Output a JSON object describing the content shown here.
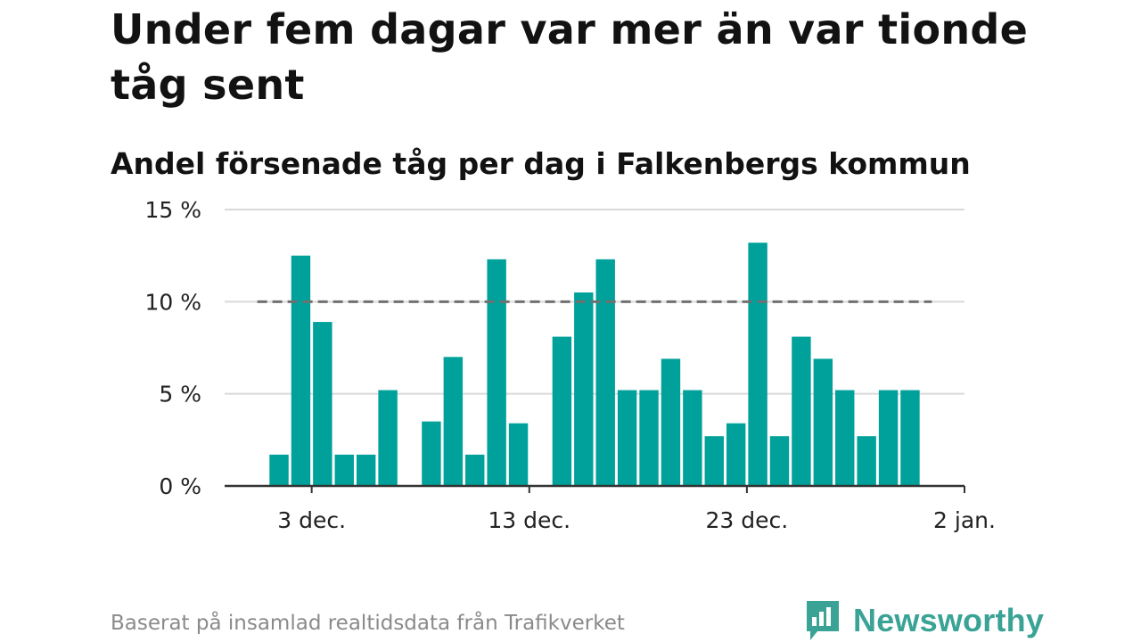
{
  "title": "Under fem dagar var mer än var tionde tåg sent",
  "subtitle": "Andel försenade tåg per dag i Falkenbergs kommun",
  "source": "Baserat på insamlad realtidsdata från Trafikverket",
  "brand": {
    "name": "Newsworthy",
    "color": "#3aa396",
    "icon": "newsworthy-chart-bubble-icon"
  },
  "colors": {
    "bar": "#00a19a",
    "grid": "#d9d9d9",
    "reference_line": "#707070",
    "axis": "#333333"
  },
  "chart_data": {
    "type": "bar",
    "title": "Under fem dagar var mer än var tionde tåg sent",
    "subtitle": "Andel försenade tåg per dag i Falkenbergs kommun",
    "xlabel": "",
    "ylabel": "",
    "x_start": "29 nov.",
    "x_tick_labels": [
      "3 dec.",
      "13 dec.",
      "23 dec.",
      "2 jan."
    ],
    "x_ticks": [
      4,
      14,
      24,
      34
    ],
    "xlim": [
      0,
      34
    ],
    "y_tick_labels": [
      "0 %",
      "5 %",
      "10 %",
      "15 %"
    ],
    "y_ticks": [
      0,
      5,
      10,
      15
    ],
    "ylim": [
      0,
      15
    ],
    "grid": true,
    "reference_line": {
      "value": 10,
      "x_from": 1.5,
      "x_to": 32.5
    },
    "values": [
      null,
      null,
      1.7,
      12.5,
      8.9,
      1.7,
      1.7,
      5.2,
      null,
      3.5,
      7.0,
      1.7,
      12.3,
      3.4,
      null,
      8.1,
      10.5,
      12.3,
      5.2,
      5.2,
      6.9,
      5.2,
      2.7,
      3.4,
      13.2,
      2.7,
      8.1,
      6.9,
      5.2,
      2.7,
      5.2,
      5.2
    ]
  }
}
